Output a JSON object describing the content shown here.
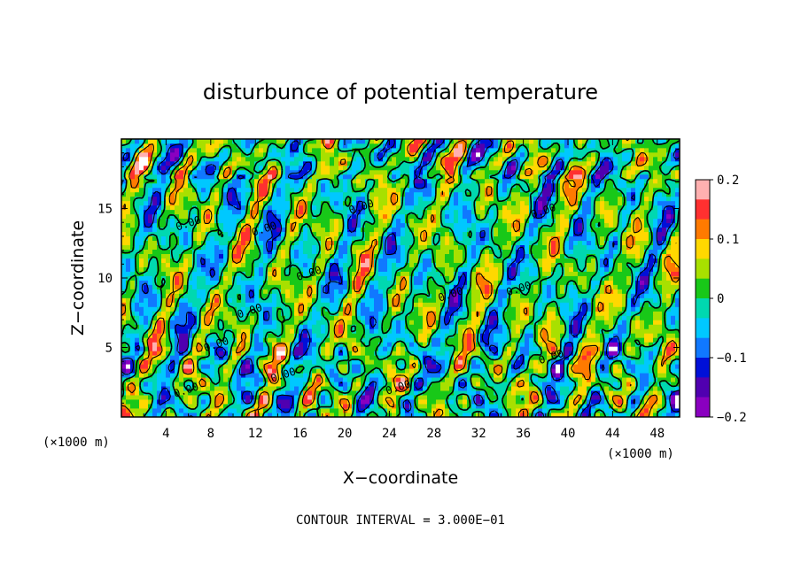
{
  "chart_data": {
    "type": "heatmap",
    "title": "disturbunce of potential temperature",
    "xlabel": "X−coordinate",
    "ylabel": "Z−coordinate",
    "x_unit": "(×1000 m)",
    "y_unit": "(×1000 m)",
    "xlim": [
      0,
      50
    ],
    "ylim": [
      0,
      20
    ],
    "x_ticks": [
      "4",
      "8",
      "12",
      "16",
      "20",
      "24",
      "28",
      "32",
      "36",
      "40",
      "44",
      "48"
    ],
    "y_ticks": [
      "5",
      "10",
      "15"
    ],
    "colorbar": {
      "range": [
        -0.2,
        0.2
      ],
      "tick_labels": [
        "0.2",
        "0.1",
        "0",
        "−0.1",
        "−0.2"
      ],
      "tick_values": [
        0.2,
        0.1,
        0,
        -0.1,
        -0.2
      ],
      "colors": [
        "#ffb0b0",
        "#ff3030",
        "#ff7a00",
        "#ffd800",
        "#a8e000",
        "#18c818",
        "#00d8b0",
        "#00c8ff",
        "#1078ff",
        "#0010d8",
        "#5000b0",
        "#8a00c0"
      ]
    },
    "contour_labels": [
      "0.00",
      "0.00",
      "0.00",
      "0.00",
      "0.00",
      "0.00",
      "0.00",
      "0.00",
      "0.00",
      "0.00",
      "0.00",
      "0.00",
      "0.00"
    ],
    "footer": "CONTOUR INTERVAL = 3.000E−01"
  }
}
